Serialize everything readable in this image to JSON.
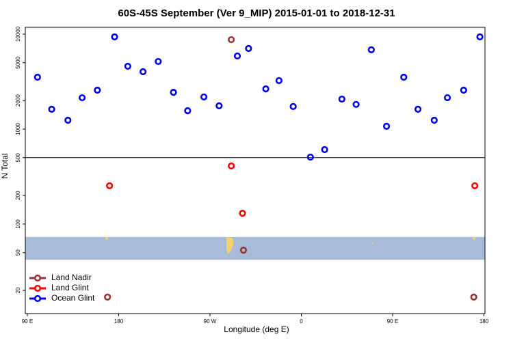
{
  "chart_data": {
    "type": "scatter",
    "title": "60S-45S September (Ver 9_MIP)   2015-01-01 to 2018-12-31",
    "x_label": "Longitude (deg E)",
    "y_label": "N Total",
    "xlim": [
      88,
      541
    ],
    "ylim": [
      11.4,
      11800
    ],
    "log_y": true,
    "xticks": [
      {
        "value": 90,
        "label": "90 E"
      },
      180,
      {
        "value": 270,
        "label": "90 W"
      },
      {
        "value": 360,
        "label": "0"
      },
      {
        "value": 450,
        "label": "90 E"
      },
      {
        "value": 540,
        "label": "180"
      }
    ],
    "yticks": [
      20,
      50,
      100,
      200,
      500,
      1000,
      2000,
      5000,
      10000
    ],
    "hline": 500,
    "band": {
      "ylim": [
        42,
        73
      ],
      "color": "#a8bcd9"
    },
    "legend": "bottom-left",
    "series": [
      {
        "name": "Land Nadir",
        "color": "#993333",
        "x": [
          291,
          169,
          303,
          530
        ],
        "values": [
          8750,
          17,
          53,
          17
        ]
      },
      {
        "name": "Land Glint",
        "color": "#ff0000",
        "x": [
          171,
          291,
          302,
          531
        ],
        "values": [
          253,
          409,
          130,
          253
        ]
      },
      {
        "name": "Ocean Glint",
        "color": "#0000ee",
        "x": [
          100,
          114,
          130,
          144,
          159,
          176,
          189,
          204,
          219,
          234,
          248,
          264,
          279,
          297,
          308,
          325,
          338,
          352,
          369,
          383,
          400,
          414,
          429,
          444,
          461,
          475,
          491,
          504,
          520,
          536
        ],
        "values": [
          3520,
          1620,
          1240,
          2140,
          2570,
          9360,
          4590,
          4020,
          5150,
          2440,
          1560,
          2180,
          1760,
          5890,
          7060,
          2650,
          3240,
          1730,
          507,
          608,
          2070,
          1820,
          6840,
          1070,
          3520,
          1620,
          1240,
          2140,
          2570,
          9360
        ]
      }
    ]
  }
}
